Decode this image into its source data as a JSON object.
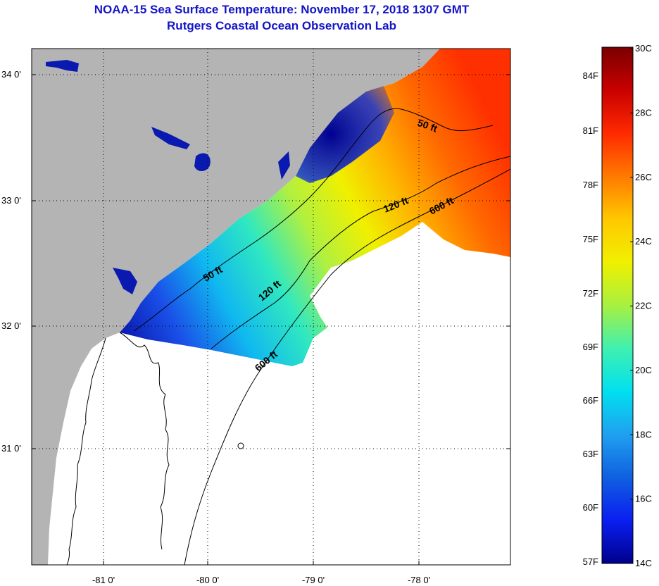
{
  "header": {
    "title": "NOAA-15 Sea Surface Temperature:  November 17, 2018 1307 GMT",
    "subtitle": "Rutgers Coastal Ocean Observation Lab"
  },
  "map": {
    "lat_ticks": [
      "34 0'",
      "33 0'",
      "32 0'",
      "31 0'"
    ],
    "lon_ticks": [
      "-81 0'",
      "-80 0'",
      "-79 0'",
      "-78 0'"
    ],
    "contours": [
      {
        "label": "50 ft"
      },
      {
        "label": "50 ft"
      },
      {
        "label": "120 ft"
      },
      {
        "label": "120 ft"
      },
      {
        "label": "600 ft"
      },
      {
        "label": "600 ft"
      }
    ]
  },
  "colorbar": {
    "celsius": [
      "30C",
      "28C",
      "26C",
      "24C",
      "22C",
      "20C",
      "18C",
      "16C",
      "14C"
    ],
    "fahrenheit": [
      "84F",
      "81F",
      "78F",
      "75F",
      "72F",
      "69F",
      "66F",
      "63F",
      "60F",
      "57F"
    ],
    "gradient": [
      "#7a0000",
      "#c80000",
      "#ff2a00",
      "#ff7a00",
      "#ffc800",
      "#f0f000",
      "#a8f040",
      "#40f0b0",
      "#00e0f0",
      "#20a0f0",
      "#1060e0",
      "#0a1ef0",
      "#00008c"
    ]
  },
  "colors": {
    "land": "#b4b4b4",
    "no_data": "#ffffff",
    "title": "#1414c8"
  }
}
